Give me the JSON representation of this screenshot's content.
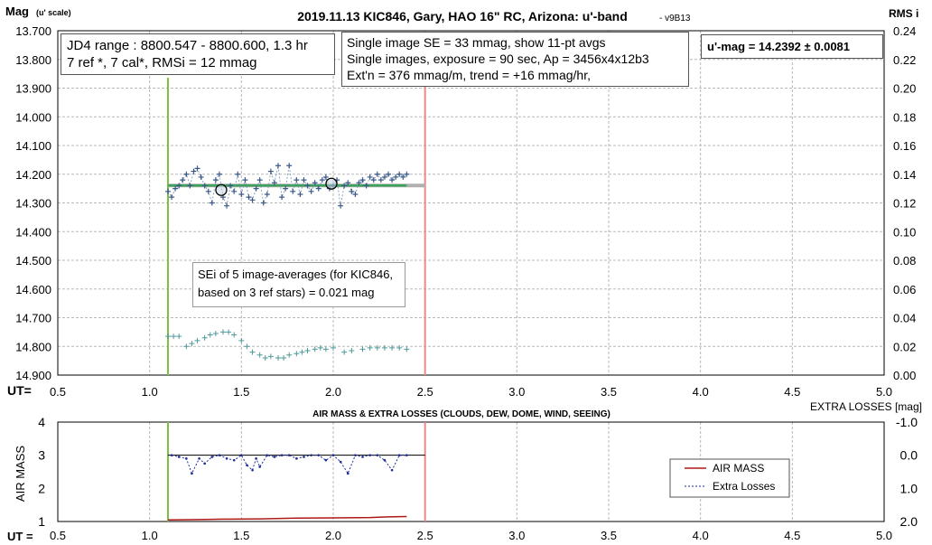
{
  "title": "2019.11.13 KIC846, Gary, HAO 16\" RC, Arizona: u'-band",
  "version": "- v9B13",
  "top_chart": {
    "y_left_label": "Mag",
    "y_left_label_sub": "(u' scale)",
    "y_right_label": "RMS i",
    "x_label": "UT="
  },
  "info_box_1": {
    "line1": "JD4 range : 8800.547 - 8800.600,  1.3  hr",
    "line2": "7 ref *, 7 cal*, RMSi = 12 mmag"
  },
  "info_box_2": {
    "line1": "Single image SE = 33 mmag, show  11-pt avgs",
    "line2": "Single images, exposure = 90 sec, Ap = 3456x4x12b3",
    "line3": "Ext'n = 376 mmag/m, trend =  +16 mmag/hr,"
  },
  "result_box": {
    "text": "u'-mag = 14.2392 ± 0.0081"
  },
  "sei_box": {
    "line1": "SEi of 5 image-averages (for KIC846,",
    "line2": "based on 3 ref stars) = 0.021 mag"
  },
  "bottom_chart": {
    "title": "AIR MASS & EXTRA LOSSES (CLOUDS, DEW, DOME, WIND, SEEING)",
    "y_left_label": "AIR MASS",
    "y_right_label": "EXTRA LOSSES [mag]",
    "x_label": "UT ="
  },
  "legend": {
    "air_mass": "AIR MASS",
    "extra_losses": "Extra Losses"
  },
  "colors": {
    "mag_points": "#3b5a86",
    "fit_line": "#3aa55a",
    "rms_points": "#4f9a9a",
    "green_marker": "#7cc242",
    "red_marker": "#e88a8a",
    "air_mass": "#b01818",
    "extra_losses": "#1a2a9a"
  },
  "chart_data": [
    {
      "type": "scatter",
      "name": "magnitude",
      "x_ticks": [
        "0.5",
        "1.0",
        "1.5",
        "2.0",
        "2.5",
        "3.0",
        "3.5",
        "4.0",
        "4.5",
        "5.0"
      ],
      "y_left_ticks": [
        "13.700",
        "13.800",
        "13.900",
        "14.000",
        "14.100",
        "14.200",
        "14.300",
        "14.400",
        "14.500",
        "14.600",
        "14.700",
        "14.800",
        "14.900"
      ],
      "y_right_ticks": [
        "0.24",
        "0.22",
        "0.20",
        "0.18",
        "0.16",
        "0.14",
        "0.12",
        "0.10",
        "0.08",
        "0.06",
        "0.04",
        "0.02",
        "0.00"
      ],
      "xlim": [
        0.5,
        5.0
      ],
      "ylim_left": [
        14.9,
        13.7
      ],
      "ylim_right": [
        0.0,
        0.24
      ],
      "markers_x": [
        1.1,
        2.5
      ],
      "fit_y": 14.2392,
      "fit_x": [
        1.1,
        2.4
      ],
      "mag_x": [
        1.1,
        1.12,
        1.14,
        1.16,
        1.18,
        1.2,
        1.22,
        1.24,
        1.26,
        1.28,
        1.3,
        1.32,
        1.34,
        1.36,
        1.38,
        1.4,
        1.42,
        1.44,
        1.46,
        1.48,
        1.5,
        1.52,
        1.54,
        1.56,
        1.58,
        1.6,
        1.62,
        1.64,
        1.66,
        1.68,
        1.7,
        1.72,
        1.74,
        1.76,
        1.78,
        1.8,
        1.82,
        1.84,
        1.86,
        1.88,
        1.9,
        1.92,
        1.94,
        1.96,
        1.98,
        2.0,
        2.02,
        2.04,
        2.06,
        2.08,
        2.1,
        2.12,
        2.14,
        2.16,
        2.18,
        2.2,
        2.22,
        2.24,
        2.26,
        2.28,
        2.3,
        2.32,
        2.34,
        2.36,
        2.38,
        2.4
      ],
      "mag_y": [
        14.26,
        14.28,
        14.25,
        14.24,
        14.22,
        14.2,
        14.24,
        14.19,
        14.18,
        14.21,
        14.24,
        14.26,
        14.3,
        14.22,
        14.2,
        14.28,
        14.31,
        14.24,
        14.26,
        14.2,
        14.27,
        14.22,
        14.28,
        14.29,
        14.25,
        14.22,
        14.3,
        14.27,
        14.19,
        14.23,
        14.17,
        14.28,
        14.25,
        14.17,
        14.26,
        14.22,
        14.27,
        14.22,
        14.24,
        14.26,
        14.23,
        14.25,
        14.22,
        14.21,
        14.25,
        14.24,
        14.22,
        14.31,
        14.24,
        14.23,
        14.26,
        14.27,
        14.23,
        14.22,
        14.24,
        14.21,
        14.22,
        14.2,
        14.22,
        14.21,
        14.2,
        14.22,
        14.21,
        14.2,
        14.21,
        14.2
      ],
      "avg_x": [
        1.39,
        1.99
      ],
      "avg_y": [
        14.255,
        14.233
      ],
      "rms_x": [
        1.1,
        1.13,
        1.16,
        1.2,
        1.23,
        1.26,
        1.3,
        1.33,
        1.36,
        1.4,
        1.43,
        1.46,
        1.5,
        1.53,
        1.56,
        1.6,
        1.63,
        1.66,
        1.7,
        1.73,
        1.76,
        1.8,
        1.83,
        1.86,
        1.9,
        1.93,
        1.96,
        2.0,
        2.06,
        2.1,
        2.16,
        2.2,
        2.24,
        2.28,
        2.32,
        2.36,
        2.4
      ],
      "rms_y": [
        0.027,
        0.027,
        0.027,
        0.02,
        0.022,
        0.024,
        0.026,
        0.028,
        0.029,
        0.03,
        0.03,
        0.028,
        0.024,
        0.02,
        0.016,
        0.014,
        0.012,
        0.013,
        0.012,
        0.012,
        0.014,
        0.015,
        0.016,
        0.017,
        0.018,
        0.019,
        0.018,
        0.019,
        0.016,
        0.017,
        0.018,
        0.019,
        0.019,
        0.019,
        0.019,
        0.019,
        0.018
      ]
    },
    {
      "type": "line",
      "name": "air mass & extra losses",
      "x_ticks": [
        "0.5",
        "1.0",
        "1.5",
        "2.0",
        "2.5",
        "3.0",
        "3.5",
        "4.0",
        "4.5",
        "5.0"
      ],
      "y_left_ticks": [
        "4",
        "3",
        "2",
        "1"
      ],
      "y_right_ticks": [
        "-1.0",
        "0.0",
        "1.0",
        "2.0"
      ],
      "ylim_left": [
        1,
        4
      ],
      "ylim_right": [
        -1.0,
        2.0
      ],
      "extra_baseline": 0.0,
      "series": [
        {
          "name": "AIR MASS",
          "x": [
            1.1,
            1.3,
            1.4,
            1.6,
            1.8,
            2.0,
            2.2,
            2.3,
            2.4
          ],
          "y": [
            1.05,
            1.06,
            1.07,
            1.08,
            1.1,
            1.11,
            1.12,
            1.14,
            1.15
          ]
        },
        {
          "name": "Extra Losses",
          "x": [
            1.12,
            1.16,
            1.2,
            1.23,
            1.27,
            1.3,
            1.34,
            1.38,
            1.42,
            1.46,
            1.5,
            1.53,
            1.56,
            1.58,
            1.6,
            1.64,
            1.68,
            1.72,
            1.76,
            1.8,
            1.84,
            1.88,
            1.92,
            1.96,
            2.0,
            2.04,
            2.08,
            2.12,
            2.16,
            2.2,
            2.24,
            2.28,
            2.32,
            2.36,
            2.4
          ],
          "y": [
            0.0,
            0.05,
            0.1,
            0.55,
            0.1,
            0.25,
            0.05,
            0.0,
            0.1,
            0.15,
            0.0,
            0.3,
            0.45,
            0.1,
            0.35,
            0.0,
            0.05,
            0.0,
            0.0,
            0.1,
            0.05,
            0.0,
            0.0,
            0.15,
            0.0,
            0.2,
            0.55,
            0.0,
            0.05,
            0.0,
            0.0,
            0.15,
            0.45,
            0.0,
            0.0
          ]
        }
      ]
    }
  ]
}
